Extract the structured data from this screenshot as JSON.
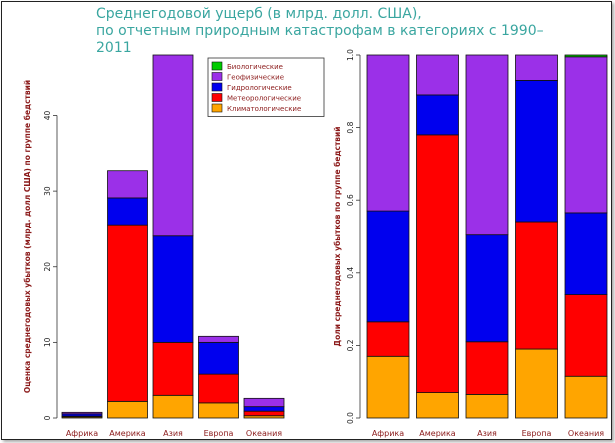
{
  "title": {
    "line1": "Среднегодовой ущерб (в млрд. долл. США),",
    "line2": "по отчетным природным катастрофам в категориях с 1990–2011"
  },
  "colors": {
    "Биологические": "#00cc00",
    "Геофизические": "#9b30e8",
    "Гидрологические": "#0000ee",
    "Метеорологические": "#ff0000",
    "Климатологические": "#ffa500"
  },
  "chart_data": [
    {
      "type": "bar",
      "stacked": true,
      "categories": [
        "Африка",
        "Америка",
        "Азия",
        "Европа",
        "Океания"
      ],
      "ylabel": "Оценка среднегодовых убытков (млрд. долл США) по группе бедствий",
      "ylim": [
        0,
        48
      ],
      "yticks": [
        0,
        10,
        20,
        30,
        40
      ],
      "legend_position": "top-right",
      "legend": [
        "Биологические",
        "Геофизические",
        "Гидрологические",
        "Метеорологические",
        "Климатологические"
      ],
      "series": [
        {
          "name": "Климатологические",
          "values": [
            0.15,
            2.2,
            3.0,
            2.0,
            0.3
          ]
        },
        {
          "name": "Метеорологические",
          "values": [
            0.1,
            23.3,
            7.0,
            3.8,
            0.6
          ]
        },
        {
          "name": "Гидрологические",
          "values": [
            0.3,
            3.6,
            14.1,
            4.2,
            0.6
          ]
        },
        {
          "name": "Геофизические",
          "values": [
            0.2,
            3.6,
            23.9,
            0.8,
            1.1
          ]
        },
        {
          "name": "Биологические",
          "values": [
            0,
            0,
            0,
            0,
            0
          ]
        }
      ]
    },
    {
      "type": "bar",
      "stacked": true,
      "categories": [
        "Африка",
        "Америка",
        "Азия",
        "Европа",
        "Океания"
      ],
      "ylabel": "Доли среднегодовых убытков по группе бедствий",
      "ylim": [
        0,
        1
      ],
      "yticks": [
        0.0,
        0.2,
        0.4,
        0.6,
        0.8,
        1.0
      ],
      "series": [
        {
          "name": "Климатологические",
          "values": [
            0.17,
            0.07,
            0.065,
            0.19,
            0.115
          ]
        },
        {
          "name": "Метеорологические",
          "values": [
            0.095,
            0.71,
            0.145,
            0.35,
            0.225
          ]
        },
        {
          "name": "Гидрологические",
          "values": [
            0.305,
            0.11,
            0.295,
            0.39,
            0.225
          ]
        },
        {
          "name": "Геофизические",
          "values": [
            0.43,
            0.11,
            0.495,
            0.07,
            0.43
          ]
        },
        {
          "name": "Биологические",
          "values": [
            0,
            0,
            0,
            0,
            0.005
          ]
        }
      ]
    }
  ]
}
